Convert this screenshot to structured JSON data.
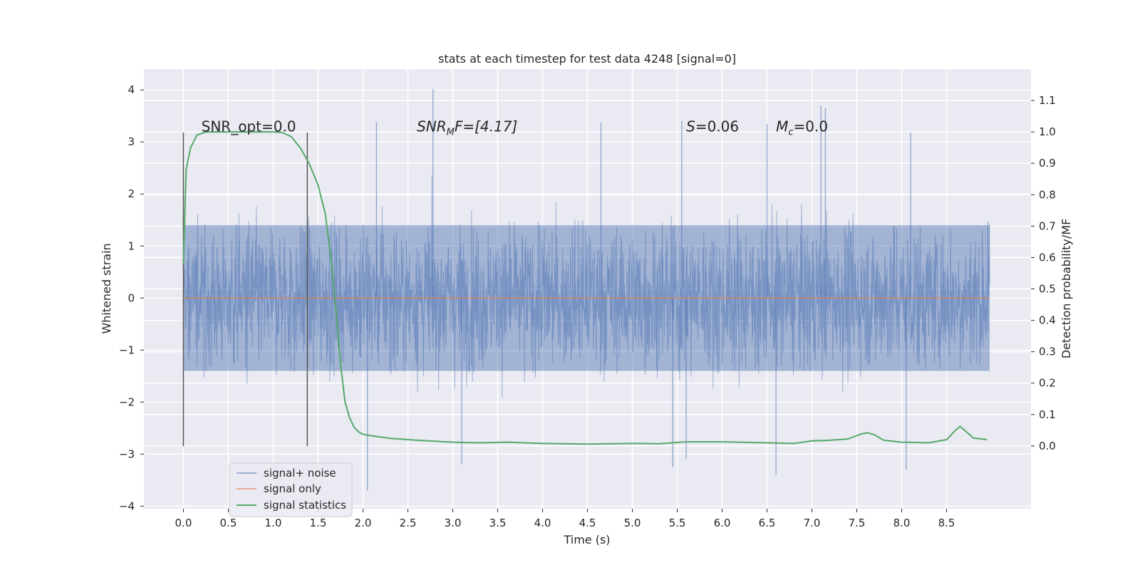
{
  "chart_data": {
    "type": "line",
    "title": "stats at each timestep for test data 4248 [signal=0]",
    "xlabel": "Time (s)",
    "ylabel": "Whitened strain",
    "ylabel_right": "Detection probability/MF",
    "xlim": [
      -0.44,
      9.44
    ],
    "ylim": [
      -4.05,
      4.4
    ],
    "ylim_right": [
      -0.2,
      1.2
    ],
    "x_ticks": [
      0.0,
      0.5,
      1.0,
      1.5,
      2.0,
      2.5,
      3.0,
      3.5,
      4.0,
      4.5,
      5.0,
      5.5,
      6.0,
      6.5,
      7.0,
      7.5,
      8.0,
      8.5
    ],
    "x_tick_labels": [
      "0.0",
      "0.5",
      "1.0",
      "1.5",
      "2.0",
      "2.5",
      "3.0",
      "3.5",
      "4.0",
      "4.5",
      "5.0",
      "5.5",
      "6.0",
      "6.5",
      "7.0",
      "7.5",
      "8.0",
      "8.5"
    ],
    "y_ticks": [
      4,
      3,
      2,
      1,
      0,
      -1,
      -2,
      -3,
      -4
    ],
    "y_tick_labels": [
      "4",
      "3",
      "2",
      "1",
      "0",
      "−1",
      "−2",
      "−3",
      "−4"
    ],
    "y_right_ticks": [
      1.1,
      1.0,
      0.9,
      0.8,
      0.7,
      0.6,
      0.5,
      0.4,
      0.3,
      0.2,
      0.1,
      0.0
    ],
    "y_right_tick_labels": [
      "1.1",
      "1.0",
      "0.9",
      "0.8",
      "0.7",
      "0.6",
      "0.5",
      "0.4",
      "0.3",
      "0.2",
      "0.1",
      "0.0"
    ],
    "grid": true,
    "legend_position": "lower-left",
    "vertical_markers": [
      {
        "x": 0.0,
        "y_range": [
          -2.85,
          3.18
        ]
      },
      {
        "x": 1.38,
        "y_range": [
          -2.85,
          3.18
        ]
      }
    ],
    "annotations": [
      {
        "id": "snr-opt",
        "text": "SNR_opt=0.0",
        "x": 0.2
      },
      {
        "id": "snr-mf",
        "text_main": "SNR",
        "text_sub": "M",
        "text_rest": "F=[4.17]",
        "x": 2.6
      },
      {
        "id": "s-stat",
        "text_italic": "S",
        "text_rest": "=0.06",
        "x": 5.6
      },
      {
        "id": "mc",
        "text_main": "M",
        "text_sub": "c",
        "text_rest": "=0.0",
        "x": 6.6
      }
    ],
    "annotation_y": 3.2,
    "series": [
      {
        "name": "signal+ noise",
        "color": "#4c72b0",
        "description": "dense whitened strain noise trace",
        "x_range": [
          0.0,
          8.98
        ],
        "typical_amplitude": [
          -1.4,
          1.4
        ],
        "spikes": [
          {
            "x": 2.78,
            "y": 4.02
          },
          {
            "x": 7.1,
            "y": 3.7
          },
          {
            "x": 7.15,
            "y": 3.65
          },
          {
            "x": 2.15,
            "y": 3.38
          },
          {
            "x": 4.65,
            "y": 3.38
          },
          {
            "x": 5.55,
            "y": 3.4
          },
          {
            "x": 6.5,
            "y": 3.35
          },
          {
            "x": 8.1,
            "y": 3.18
          },
          {
            "x": 2.05,
            "y": -3.7
          },
          {
            "x": 6.6,
            "y": -3.4
          },
          {
            "x": 8.05,
            "y": -3.3
          },
          {
            "x": 3.1,
            "y": -3.2
          },
          {
            "x": 5.45,
            "y": -3.25
          },
          {
            "x": 5.6,
            "y": -3.1
          }
        ]
      },
      {
        "name": "signal only",
        "color": "#dd8452",
        "x": [
          0.0,
          8.98
        ],
        "y": [
          0.0,
          0.0
        ]
      },
      {
        "name": "signal statistics",
        "color": "#55a868",
        "axis": "right",
        "x": [
          0.0,
          0.03,
          0.08,
          0.15,
          0.25,
          0.4,
          0.6,
          0.8,
          1.0,
          1.1,
          1.2,
          1.3,
          1.4,
          1.5,
          1.58,
          1.65,
          1.7,
          1.75,
          1.8,
          1.85,
          1.9,
          1.95,
          2.0,
          2.1,
          2.3,
          2.6,
          3.0,
          3.3,
          3.6,
          4.0,
          4.5,
          5.0,
          5.3,
          5.6,
          6.0,
          6.5,
          6.8,
          7.0,
          7.2,
          7.4,
          7.55,
          7.62,
          7.7,
          7.8,
          8.0,
          8.3,
          8.5,
          8.6,
          8.65,
          8.72,
          8.8,
          8.95
        ],
        "y": [
          0.58,
          0.88,
          0.95,
          0.99,
          1.0,
          1.0,
          1.0,
          1.0,
          1.0,
          0.998,
          0.985,
          0.95,
          0.9,
          0.83,
          0.74,
          0.58,
          0.43,
          0.26,
          0.14,
          0.09,
          0.06,
          0.045,
          0.037,
          0.032,
          0.024,
          0.018,
          0.012,
          0.01,
          0.012,
          0.008,
          0.006,
          0.008,
          0.007,
          0.013,
          0.013,
          0.01,
          0.008,
          0.016,
          0.018,
          0.022,
          0.038,
          0.042,
          0.035,
          0.018,
          0.012,
          0.01,
          0.02,
          0.05,
          0.062,
          0.045,
          0.025,
          0.02
        ]
      }
    ]
  }
}
